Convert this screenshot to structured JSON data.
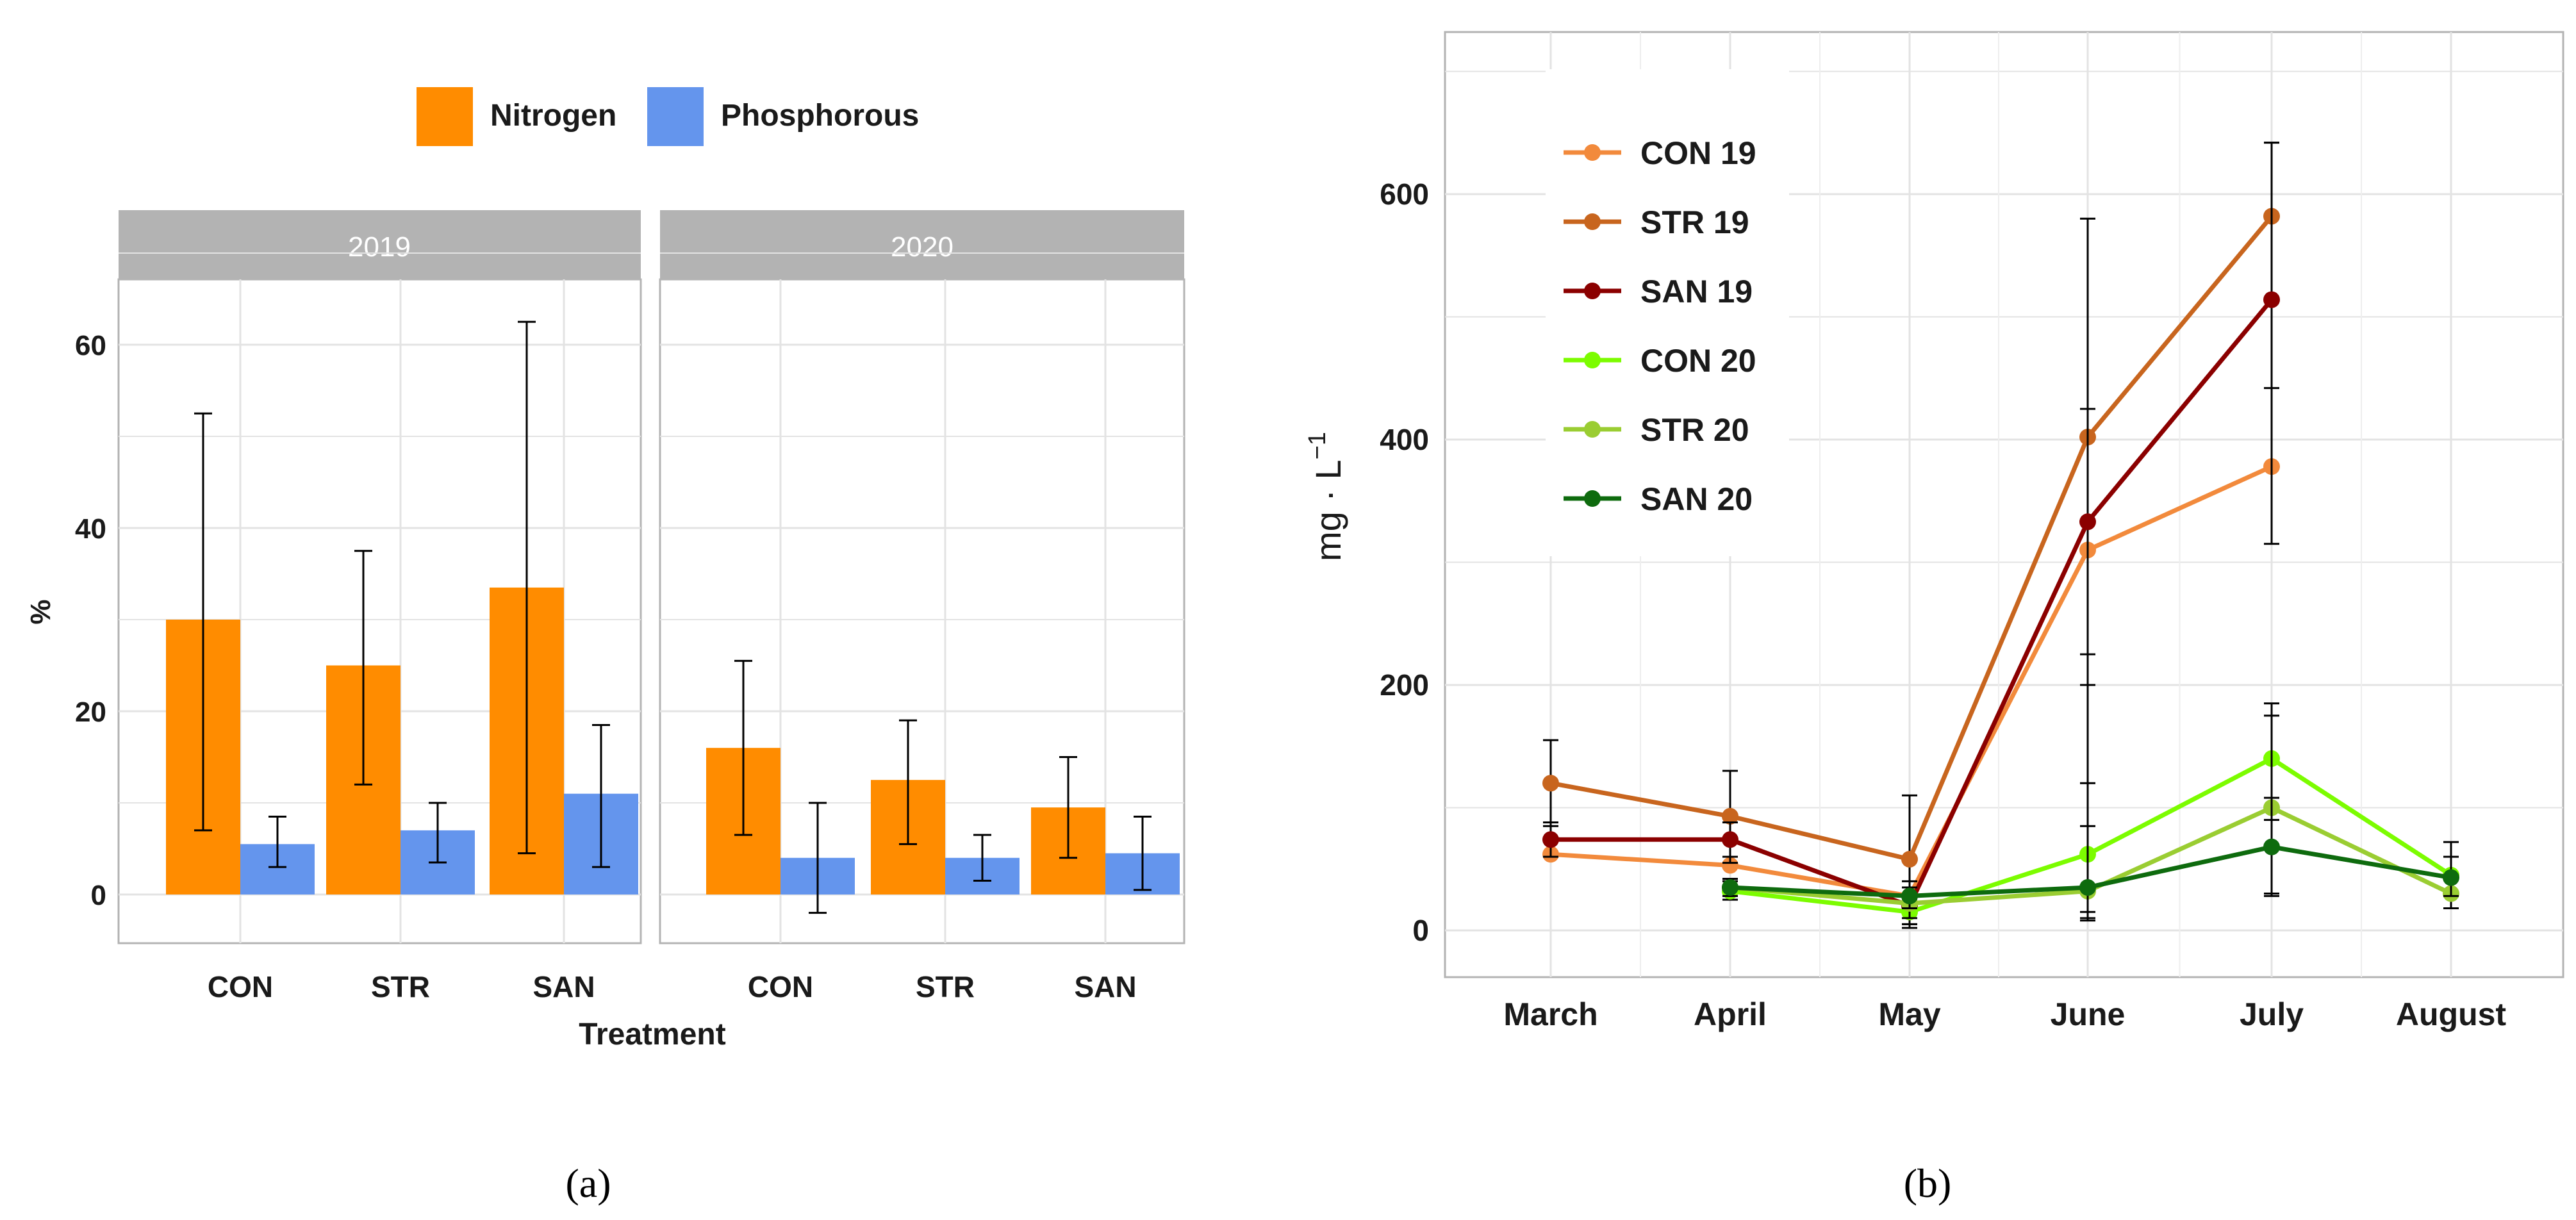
{
  "chart_data": [
    {
      "type": "bar",
      "panel_label": "a",
      "legend": [
        {
          "name": "Nitrogen",
          "color": "#FF8C00"
        },
        {
          "name": "Phosphorous",
          "color": "#6495ED"
        }
      ],
      "facets": [
        {
          "label": "2019",
          "categories": [
            "CON",
            "STR",
            "SAN"
          ],
          "series": [
            {
              "name": "Nitrogen",
              "values": [
                30,
                25,
                33.5
              ],
              "err_low": [
                7,
                12,
                4.5
              ],
              "err_high": [
                52.5,
                37.5,
                62.5
              ]
            },
            {
              "name": "Phosphorous",
              "values": [
                5.5,
                7,
                11
              ],
              "err_low": [
                3,
                3.5,
                3
              ],
              "err_high": [
                8.5,
                10,
                18.5
              ]
            }
          ]
        },
        {
          "label": "2020",
          "categories": [
            "CON",
            "STR",
            "SAN"
          ],
          "series": [
            {
              "name": "Nitrogen",
              "values": [
                16,
                12.5,
                9.5
              ],
              "err_low": [
                6.5,
                5.5,
                4
              ],
              "err_high": [
                25.5,
                19,
                15
              ]
            },
            {
              "name": "Phosphorous",
              "values": [
                4,
                4,
                4.5
              ],
              "err_low": [
                -2,
                1.5,
                0.5
              ],
              "err_high": [
                10,
                6.5,
                8.5
              ]
            }
          ]
        }
      ],
      "xlabel": "Treatment",
      "ylabel": "%",
      "ylim": [
        -5,
        70
      ],
      "yticks": [
        0,
        20,
        40,
        60
      ],
      "grid": true,
      "legend_position": "top"
    },
    {
      "type": "line",
      "panel_label": "b",
      "x": [
        "March",
        "April",
        "May",
        "June",
        "July",
        "August"
      ],
      "series": [
        {
          "name": "CON 19",
          "color": "#F28A3C",
          "values": [
            62,
            53,
            28,
            310,
            378,
            null
          ],
          "err_low": [
            null,
            null,
            null,
            null,
            null,
            null
          ],
          "err_high": [
            null,
            null,
            null,
            null,
            null,
            null
          ]
        },
        {
          "name": "STR 19",
          "color": "#C8651E",
          "values": [
            120,
            93,
            58,
            402,
            582,
            null
          ],
          "err_low": [
            85,
            55,
            2,
            225,
            442,
            null
          ],
          "err_high": [
            155,
            130,
            110,
            580,
            642,
            null
          ]
        },
        {
          "name": "SAN 19",
          "color": "#8B0000",
          "values": [
            74,
            74,
            20,
            333,
            514,
            null
          ],
          "err_low": [
            60,
            60,
            5,
            8,
            315,
            null
          ],
          "err_high": [
            88,
            88,
            35,
            425,
            642,
            null
          ]
        },
        {
          "name": "CON 20",
          "color": "#7CFC00",
          "values": [
            null,
            32,
            15,
            62,
            140,
            45
          ],
          "err_low": [
            null,
            25,
            5,
            35,
            90,
            30
          ],
          "err_high": [
            null,
            40,
            25,
            85,
            185,
            60
          ]
        },
        {
          "name": "STR 20",
          "color": "#9ACD32",
          "values": [
            null,
            35,
            22,
            32,
            100,
            30
          ],
          "err_low": [
            null,
            28,
            10,
            15,
            30,
            18
          ],
          "err_high": [
            null,
            42,
            35,
            120,
            175,
            45
          ]
        },
        {
          "name": "SAN 20",
          "color": "#0E6B0E",
          "values": [
            null,
            35,
            28,
            35,
            68,
            43
          ],
          "err_low": [
            null,
            28,
            18,
            10,
            28,
            28
          ],
          "err_high": [
            null,
            42,
            40,
            200,
            108,
            72
          ]
        }
      ],
      "ylabel_main": "mg · L",
      "ylabel_sup": "−1",
      "ylim": [
        -40,
        720
      ],
      "yticks": [
        0,
        200,
        400,
        600
      ],
      "grid": true,
      "legend_position": "top-left"
    }
  ],
  "captions": {
    "a": "(a)",
    "b": "(b)"
  }
}
